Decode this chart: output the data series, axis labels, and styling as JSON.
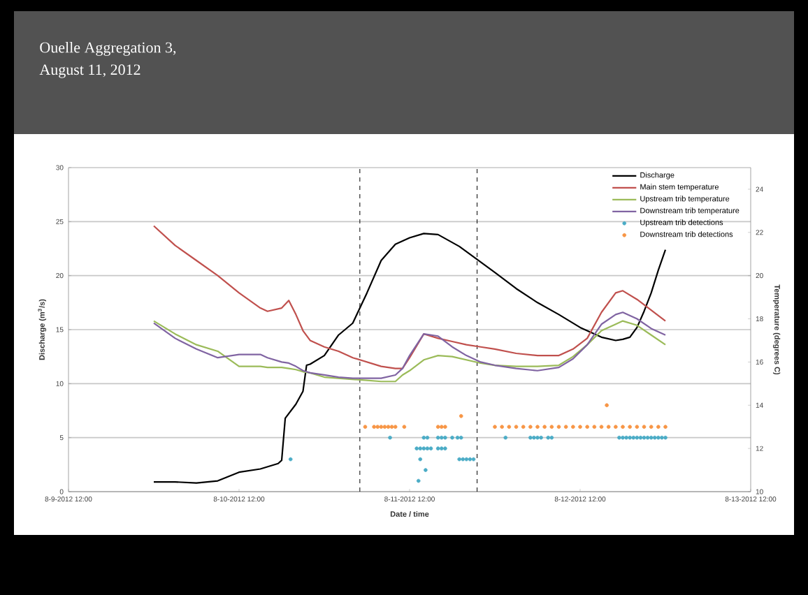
{
  "chart_data": {
    "type": "line",
    "title": "Ouelle Aggregation 3,",
    "subtitle": "August 11, 2012",
    "xlabel": "Date / time",
    "ylabel": "Discharge (m$^{3}$/s)",
    "y2label": "Temperature (degrees C)",
    "xlim": [
      "2012-08-09T12:00",
      "2012-08-13T12:00"
    ],
    "xticks": [
      {
        "value": "2012-08-09T12:00",
        "label": "8-9-2012 12:00"
      },
      {
        "value": "2012-08-10T12:00",
        "label": "8-10-2012 12:00"
      },
      {
        "value": "2012-08-11T12:00",
        "label": "8-11-2012 12:00"
      },
      {
        "value": "2012-08-12T12:00",
        "label": "8-12-2012 12:00"
      },
      {
        "value": "2012-08-13T12:00",
        "label": "8-13-2012 12:00"
      }
    ],
    "ylim": [
      0,
      30
    ],
    "yticks": [
      0,
      5,
      10,
      15,
      20,
      25,
      30
    ],
    "y2lim": [
      10,
      25
    ],
    "y2ticks": [
      10,
      12,
      14,
      16,
      18,
      20,
      22,
      24
    ],
    "grid": "y",
    "legend": "top right",
    "x": [
      "2012-08-10T00:00",
      "2012-08-10T03:00",
      "2012-08-10T06:00",
      "2012-08-10T09:00",
      "2012-08-10T12:00",
      "2012-08-10T15:00",
      "2012-08-10T16:00",
      "2012-08-10T18:00",
      "2012-08-10T19:00",
      "2012-08-10T20:00",
      "2012-08-10T21:00",
      "2012-08-10T22:00",
      "2012-08-11T00:00",
      "2012-08-11T02:00",
      "2012-08-11T04:00",
      "2012-08-11T06:00",
      "2012-08-11T08:00",
      "2012-08-11T10:00",
      "2012-08-11T11:00",
      "2012-08-11T12:00",
      "2012-08-11T14:00",
      "2012-08-11T16:00",
      "2012-08-11T18:00",
      "2012-08-11T20:00",
      "2012-08-11T22:00",
      "2012-08-12T00:00",
      "2012-08-12T03:00",
      "2012-08-12T06:00",
      "2012-08-12T09:00",
      "2012-08-12T11:00",
      "2012-08-12T13:00",
      "2012-08-12T15:00",
      "2012-08-12T17:00",
      "2012-08-12T18:00",
      "2012-08-12T20:00",
      "2012-08-12T22:00",
      "2012-08-13T00:00"
    ],
    "ref_lines": [
      {
        "axis": "x",
        "value": "2012-08-11T05:00",
        "color": "#000000",
        "line_style": "dashed"
      },
      {
        "axis": "x",
        "value": "2012-08-11T21:30",
        "color": "#000000",
        "line_style": "dashed"
      }
    ],
    "series": [
      {
        "name": "Discharge",
        "color": "#000000",
        "axis": "y",
        "x": [
          "2012-08-10T00:00",
          "2012-08-10T03:00",
          "2012-08-10T06:00",
          "2012-08-10T09:00",
          "2012-08-10T12:00",
          "2012-08-10T15:00",
          "2012-08-10T17:30",
          "2012-08-10T18:00",
          "2012-08-10T18:30",
          "2012-08-10T20:00",
          "2012-08-10T21:00",
          "2012-08-10T21:30",
          "2012-08-10T22:00",
          "2012-08-11T00:00",
          "2012-08-11T02:00",
          "2012-08-11T04:00",
          "2012-08-11T06:00",
          "2012-08-11T08:00",
          "2012-08-11T10:00",
          "2012-08-11T12:00",
          "2012-08-11T14:00",
          "2012-08-11T16:00",
          "2012-08-11T19:00",
          "2012-08-11T21:30",
          "2012-08-12T00:00",
          "2012-08-12T03:00",
          "2012-08-12T06:00",
          "2012-08-12T09:00",
          "2012-08-12T12:00",
          "2012-08-12T15:00",
          "2012-08-12T17:00",
          "2012-08-12T18:00",
          "2012-08-12T19:00",
          "2012-08-12T20:00",
          "2012-08-12T21:00",
          "2012-08-12T22:00",
          "2012-08-12T23:00",
          "2012-08-13T00:00"
        ],
        "values": [
          0.9,
          0.9,
          0.8,
          1.0,
          1.8,
          2.1,
          2.6,
          2.9,
          6.8,
          8.1,
          9.3,
          11.7,
          11.8,
          12.6,
          14.5,
          15.6,
          18.4,
          21.4,
          22.9,
          23.5,
          23.9,
          23.8,
          22.7,
          21.5,
          20.3,
          18.8,
          17.5,
          16.4,
          15.2,
          14.3,
          14.0,
          14.1,
          14.3,
          15.2,
          16.7,
          18.4,
          20.5,
          22.4
        ]
      },
      {
        "name": "Main stem temperature",
        "color": "#c0504d",
        "axis": "y2",
        "values": [
          22.3,
          21.4,
          20.7,
          20.0,
          19.2,
          18.5,
          18.35,
          18.5,
          18.85,
          18.2,
          17.45,
          17.0,
          16.7,
          16.5,
          16.2,
          16.0,
          15.8,
          15.7,
          15.7,
          16.2,
          17.3,
          17.1,
          16.95,
          16.8,
          16.7,
          16.6,
          16.4,
          16.3,
          16.3,
          16.6,
          17.1,
          18.3,
          19.2,
          19.3,
          18.9,
          18.4,
          17.9
        ]
      },
      {
        "name": "Upstream trib temperature",
        "color": "#9bbb59",
        "axis": "y2",
        "values": [
          17.9,
          17.3,
          16.8,
          16.5,
          15.8,
          15.8,
          15.75,
          15.75,
          15.7,
          15.65,
          15.55,
          15.5,
          15.3,
          15.25,
          15.2,
          15.15,
          15.1,
          15.1,
          15.4,
          15.6,
          16.1,
          16.3,
          16.25,
          16.1,
          15.95,
          15.85,
          15.8,
          15.8,
          15.85,
          16.25,
          16.8,
          17.45,
          17.75,
          17.9,
          17.7,
          17.25,
          16.8
        ]
      },
      {
        "name": "Downstream trib temperature",
        "color": "#8064a2",
        "axis": "y2",
        "values": [
          17.8,
          17.1,
          16.6,
          16.2,
          16.35,
          16.35,
          16.2,
          16.0,
          15.95,
          15.8,
          15.6,
          15.5,
          15.4,
          15.3,
          15.25,
          15.25,
          15.25,
          15.4,
          15.7,
          16.3,
          17.3,
          17.2,
          16.7,
          16.3,
          16.0,
          15.85,
          15.7,
          15.6,
          15.75,
          16.15,
          16.8,
          17.75,
          18.2,
          18.3,
          18.0,
          17.55,
          17.25
        ]
      },
      {
        "name": "Upstream trib detections",
        "color": "#4bacc6",
        "axis": "y",
        "type": "scatter",
        "x": [
          "2012-08-10T19:15",
          "2012-08-11T09:15",
          "2012-08-11T13:00",
          "2012-08-11T13:30",
          "2012-08-11T14:00",
          "2012-08-11T14:30",
          "2012-08-11T15:00",
          "2012-08-11T16:00",
          "2012-08-11T16:30",
          "2012-08-11T17:00",
          "2012-08-11T13:15",
          "2012-08-11T13:30",
          "2012-08-11T14:15",
          "2012-08-11T14:00",
          "2012-08-11T14:30",
          "2012-08-11T16:00",
          "2012-08-11T16:30",
          "2012-08-11T17:00",
          "2012-08-11T18:00",
          "2012-08-11T18:45",
          "2012-08-11T19:15",
          "2012-08-11T19:00",
          "2012-08-11T19:30",
          "2012-08-11T20:00",
          "2012-08-11T20:30",
          "2012-08-11T21:00",
          "2012-08-12T01:30",
          "2012-08-12T05:00",
          "2012-08-12T05:30",
          "2012-08-12T06:00",
          "2012-08-12T06:30",
          "2012-08-12T07:30",
          "2012-08-12T08:00",
          "2012-08-12T17:30",
          "2012-08-12T18:00",
          "2012-08-12T18:30",
          "2012-08-12T19:00",
          "2012-08-12T19:30",
          "2012-08-12T20:00",
          "2012-08-12T20:30",
          "2012-08-12T21:00",
          "2012-08-12T21:30",
          "2012-08-12T22:00",
          "2012-08-12T22:30",
          "2012-08-12T23:00",
          "2012-08-12T23:30",
          "2012-08-13T00:00"
        ],
        "values": [
          3,
          5,
          4,
          4,
          4,
          4,
          4,
          4,
          4,
          4,
          1,
          3,
          2,
          5,
          5,
          5,
          5,
          5,
          5,
          5,
          5,
          3,
          3,
          3,
          3,
          3,
          5,
          5,
          5,
          5,
          5,
          5,
          5,
          5,
          5,
          5,
          5,
          5,
          5,
          5,
          5,
          5,
          5,
          5,
          5,
          5,
          5
        ]
      },
      {
        "name": "Downstream trib detections",
        "color": "#f79646",
        "axis": "y",
        "type": "scatter",
        "x": [
          "2012-08-11T05:45",
          "2012-08-11T07:00",
          "2012-08-11T07:30",
          "2012-08-11T08:00",
          "2012-08-11T08:30",
          "2012-08-11T09:00",
          "2012-08-11T09:30",
          "2012-08-11T10:00",
          "2012-08-11T11:15",
          "2012-08-11T16:00",
          "2012-08-11T16:30",
          "2012-08-11T17:00",
          "2012-08-11T19:15",
          "2012-08-12T15:45",
          "2012-08-12T00:00",
          "2012-08-12T01:00",
          "2012-08-12T02:00",
          "2012-08-12T03:00",
          "2012-08-12T04:00",
          "2012-08-12T05:00",
          "2012-08-12T06:00",
          "2012-08-12T07:00",
          "2012-08-12T08:00",
          "2012-08-12T09:00",
          "2012-08-12T10:00",
          "2012-08-12T11:00",
          "2012-08-12T12:00",
          "2012-08-12T13:00",
          "2012-08-12T14:00",
          "2012-08-12T15:00",
          "2012-08-12T16:00",
          "2012-08-12T17:00",
          "2012-08-12T18:00",
          "2012-08-12T19:00",
          "2012-08-12T20:00",
          "2012-08-12T21:00",
          "2012-08-12T22:00",
          "2012-08-12T23:00",
          "2012-08-13T00:00"
        ],
        "values": [
          6,
          6,
          6,
          6,
          6,
          6,
          6,
          6,
          6,
          6,
          6,
          6,
          7,
          8,
          6,
          6,
          6,
          6,
          6,
          6,
          6,
          6,
          6,
          6,
          6,
          6,
          6,
          6,
          6,
          6,
          6,
          6,
          6,
          6,
          6,
          6,
          6,
          6,
          6
        ]
      }
    ]
  }
}
